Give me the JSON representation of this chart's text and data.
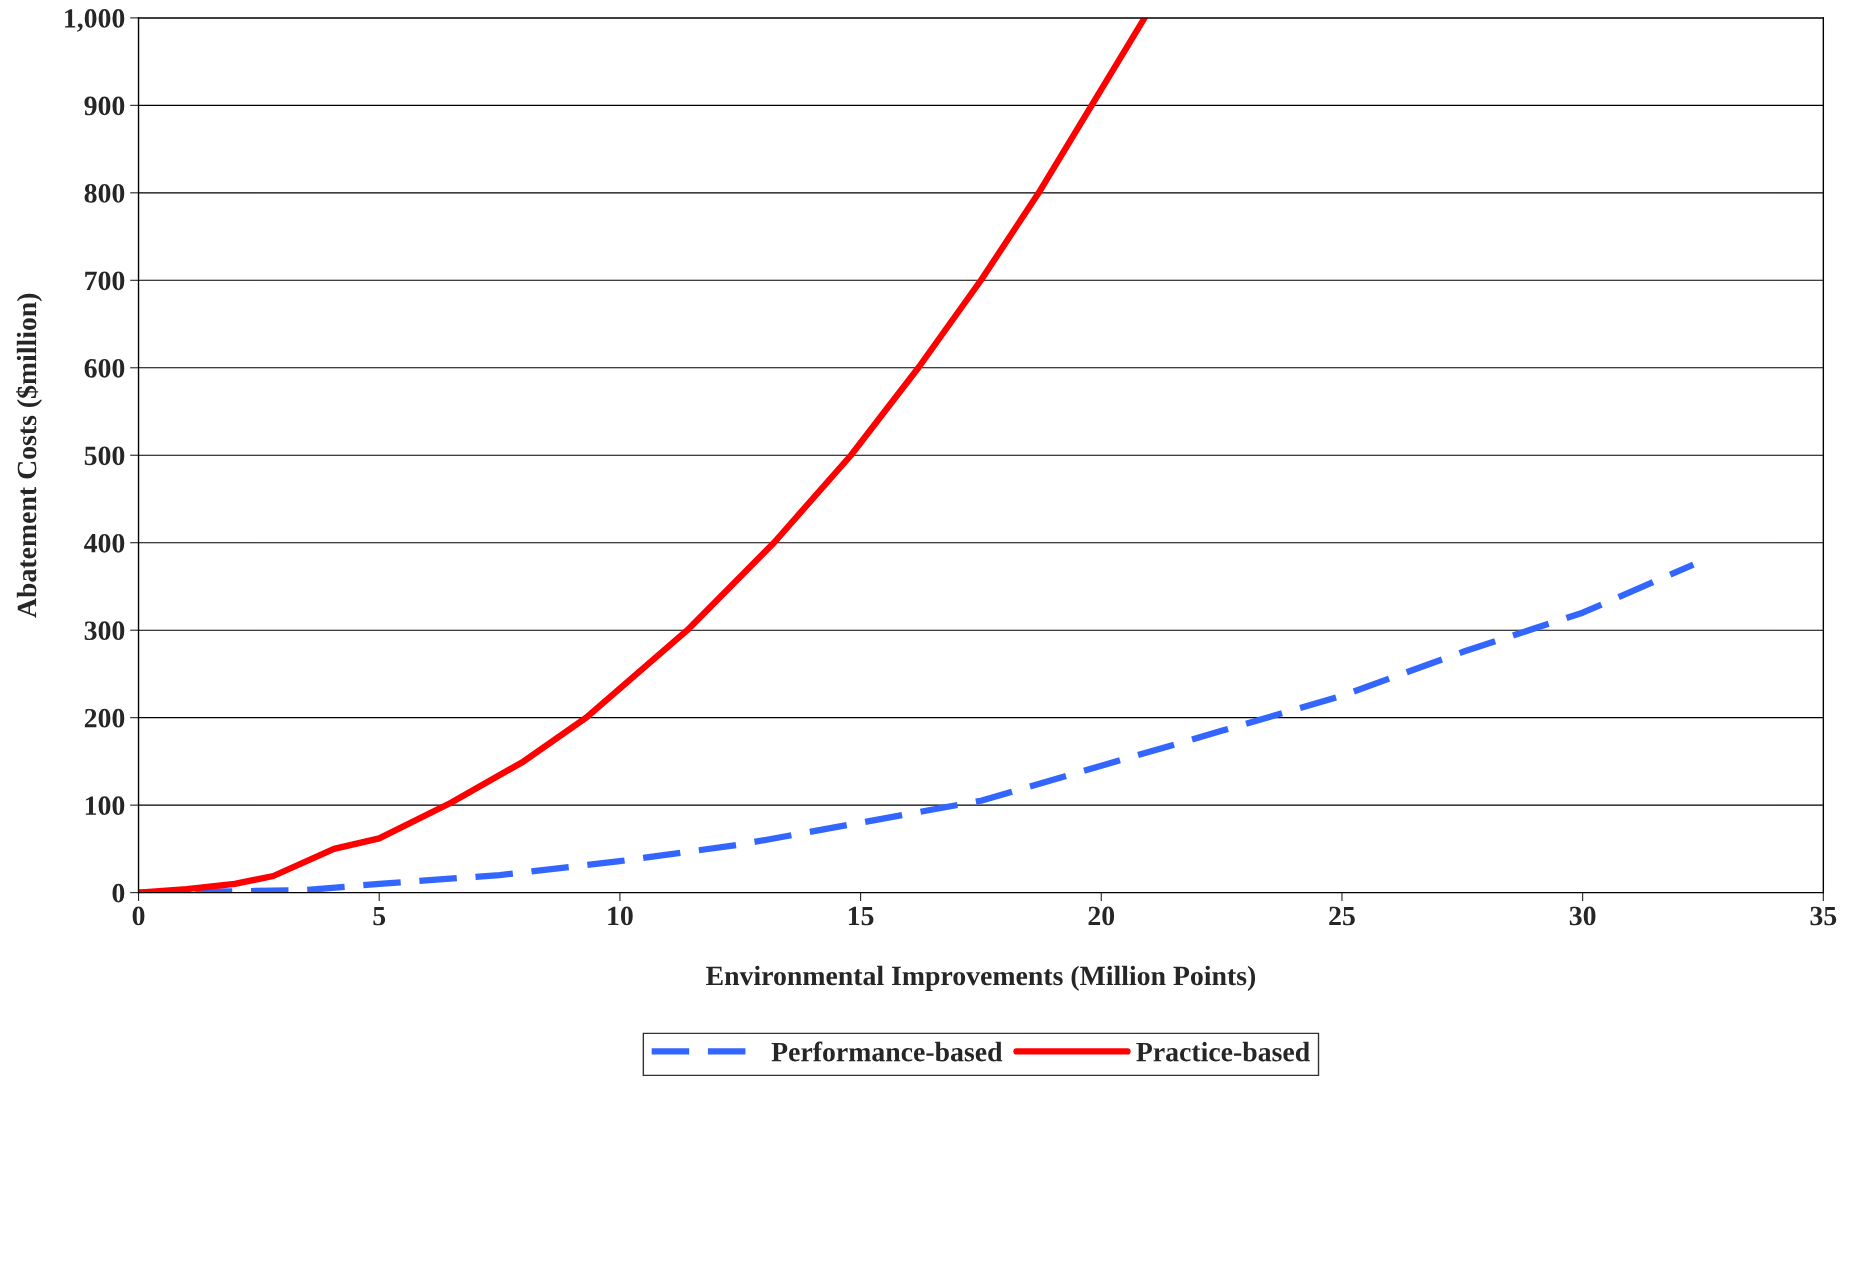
{
  "chart_data": {
    "type": "line",
    "xlabel": "Environmental Improvements (Million Points)",
    "ylabel": "Abatement Costs ($million)",
    "xlim": [
      0,
      35
    ],
    "xticks": [
      0,
      5,
      10,
      15,
      20,
      25,
      30,
      35
    ],
    "ylim": [
      0,
      1000
    ],
    "yticks": [
      0,
      100,
      200,
      300,
      400,
      500,
      600,
      700,
      800,
      900,
      {
        "value": 1000,
        "label": "1,000"
      }
    ],
    "grid": "y",
    "legend": "bottom",
    "series": [
      {
        "name": "Performance-based",
        "color": "#3366ff",
        "line_style": "dashed",
        "x": [
          0,
          1.5,
          3.5,
          5,
          7.5,
          10,
          12.5,
          15,
          17.5,
          20,
          22.5,
          25,
          27.5,
          30,
          32.3
        ],
        "values": [
          0,
          1,
          3,
          10,
          20,
          36,
          55,
          80,
          105,
          145,
          185,
          225,
          275,
          320,
          375
        ]
      },
      {
        "name": "Practice-based",
        "color": "#ff0000",
        "line_style": "solid",
        "x": [
          0,
          1,
          2,
          2.8,
          4.06,
          5,
          6.5,
          8,
          9.3,
          11.4,
          13.2,
          14.8,
          16.2,
          17.5,
          18.7,
          19.8,
          20.9
        ],
        "values": [
          0,
          4,
          10,
          19,
          50,
          62,
          103,
          150,
          200,
          300,
          400,
          500,
          600,
          700,
          800,
          900,
          1000
        ]
      }
    ]
  }
}
